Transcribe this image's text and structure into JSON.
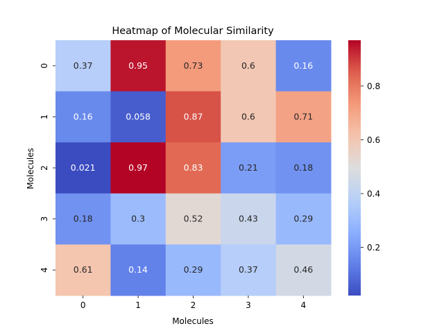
{
  "chart_data": {
    "type": "heatmap",
    "title": "Heatmap of Molecular Similarity",
    "xlabel": "Molecules",
    "ylabel": "Molecules",
    "x_categories": [
      "0",
      "1",
      "2",
      "3",
      "4"
    ],
    "y_categories": [
      "0",
      "1",
      "2",
      "3",
      "4"
    ],
    "values": [
      [
        0.37,
        0.95,
        0.73,
        0.6,
        0.16
      ],
      [
        0.16,
        0.058,
        0.87,
        0.6,
        0.71
      ],
      [
        0.021,
        0.97,
        0.83,
        0.21,
        0.18
      ],
      [
        0.18,
        0.3,
        0.52,
        0.43,
        0.29
      ],
      [
        0.61,
        0.14,
        0.29,
        0.37,
        0.46
      ]
    ],
    "cell_labels": [
      [
        "0.37",
        "0.95",
        "0.73",
        "0.6",
        "0.16"
      ],
      [
        "0.16",
        "0.058",
        "0.87",
        "0.6",
        "0.71"
      ],
      [
        "0.021",
        "0.97",
        "0.83",
        "0.21",
        "0.18"
      ],
      [
        "0.18",
        "0.3",
        "0.52",
        "0.43",
        "0.29"
      ],
      [
        "0.61",
        "0.14",
        "0.29",
        "0.37",
        "0.46"
      ]
    ],
    "colormap": "coolwarm",
    "vmin": 0.021,
    "vmax": 0.97,
    "colorbar_ticks": [
      "0.2",
      "0.4",
      "0.6",
      "0.8"
    ],
    "colorbar_tick_values": [
      0.2,
      0.4,
      0.6,
      0.8
    ]
  }
}
